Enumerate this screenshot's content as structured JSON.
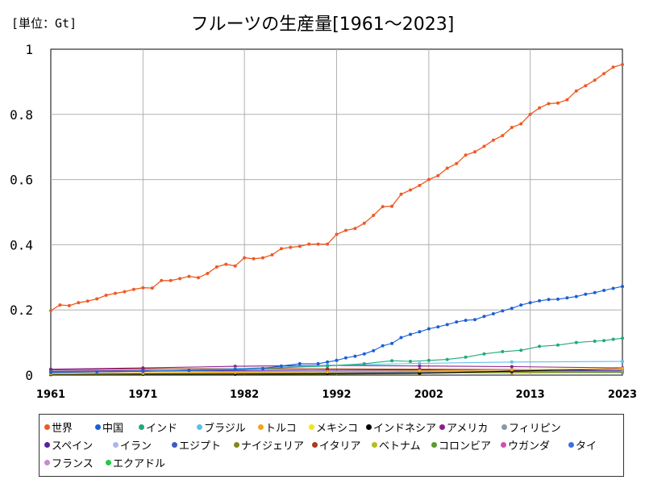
{
  "chart_data": {
    "type": "line",
    "title": "フルーツの生産量[1961～2023]",
    "unit_label": "[単位：Gt]",
    "xlabel": "",
    "ylabel": "",
    "x_ticks": [
      "1961",
      "1971",
      "1982",
      "1992",
      "2002",
      "2013",
      "2023"
    ],
    "y_ticks": [
      "0",
      "0.2",
      "0.4",
      "0.6",
      "0.8",
      "1"
    ],
    "xlim": [
      1961,
      2023
    ],
    "ylim": [
      0,
      1
    ],
    "grid": true,
    "legend_position": "bottom",
    "series": [
      {
        "name": "世界",
        "color": "#ee5a24",
        "points": [
          [
            1961,
            0.198
          ],
          [
            1962,
            0.215
          ],
          [
            1963,
            0.213
          ],
          [
            1964,
            0.222
          ],
          [
            1965,
            0.227
          ],
          [
            1966,
            0.234
          ],
          [
            1967,
            0.245
          ],
          [
            1968,
            0.251
          ],
          [
            1969,
            0.256
          ],
          [
            1970,
            0.263
          ],
          [
            1971,
            0.268
          ],
          [
            1972,
            0.267
          ],
          [
            1973,
            0.29
          ],
          [
            1974,
            0.29
          ],
          [
            1975,
            0.296
          ],
          [
            1976,
            0.303
          ],
          [
            1977,
            0.299
          ],
          [
            1978,
            0.312
          ],
          [
            1979,
            0.332
          ],
          [
            1980,
            0.34
          ],
          [
            1981,
            0.335
          ],
          [
            1982,
            0.36
          ],
          [
            1983,
            0.357
          ],
          [
            1984,
            0.36
          ],
          [
            1985,
            0.369
          ],
          [
            1986,
            0.388
          ],
          [
            1987,
            0.392
          ],
          [
            1988,
            0.395
          ],
          [
            1989,
            0.402
          ],
          [
            1990,
            0.402
          ],
          [
            1991,
            0.402
          ],
          [
            1992,
            0.432
          ],
          [
            1993,
            0.444
          ],
          [
            1994,
            0.45
          ],
          [
            1995,
            0.466
          ],
          [
            1996,
            0.49
          ],
          [
            1997,
            0.517
          ],
          [
            1998,
            0.518
          ],
          [
            1999,
            0.555
          ],
          [
            2000,
            0.568
          ],
          [
            2001,
            0.582
          ],
          [
            2002,
            0.6
          ],
          [
            2003,
            0.612
          ],
          [
            2004,
            0.635
          ],
          [
            2005,
            0.649
          ],
          [
            2006,
            0.675
          ],
          [
            2007,
            0.685
          ],
          [
            2008,
            0.702
          ],
          [
            2009,
            0.721
          ],
          [
            2010,
            0.735
          ],
          [
            2011,
            0.76
          ],
          [
            2012,
            0.771
          ],
          [
            2013,
            0.8
          ],
          [
            2014,
            0.82
          ],
          [
            2015,
            0.833
          ],
          [
            2016,
            0.835
          ],
          [
            2017,
            0.845
          ],
          [
            2018,
            0.872
          ],
          [
            2019,
            0.888
          ],
          [
            2020,
            0.905
          ],
          [
            2021,
            0.925
          ],
          [
            2022,
            0.945
          ],
          [
            2023,
            0.953
          ]
        ]
      },
      {
        "name": "中国",
        "color": "#1a5fd6",
        "points": [
          [
            1961,
            0.008
          ],
          [
            1966,
            0.01
          ],
          [
            1971,
            0.012
          ],
          [
            1976,
            0.014
          ],
          [
            1981,
            0.017
          ],
          [
            1984,
            0.02
          ],
          [
            1986,
            0.028
          ],
          [
            1988,
            0.035
          ],
          [
            1990,
            0.035
          ],
          [
            1991,
            0.04
          ],
          [
            1992,
            0.045
          ],
          [
            1993,
            0.053
          ],
          [
            1994,
            0.058
          ],
          [
            1995,
            0.065
          ],
          [
            1996,
            0.075
          ],
          [
            1997,
            0.09
          ],
          [
            1998,
            0.097
          ],
          [
            1999,
            0.115
          ],
          [
            2000,
            0.125
          ],
          [
            2001,
            0.133
          ],
          [
            2002,
            0.142
          ],
          [
            2003,
            0.148
          ],
          [
            2004,
            0.155
          ],
          [
            2005,
            0.163
          ],
          [
            2006,
            0.168
          ],
          [
            2007,
            0.17
          ],
          [
            2008,
            0.18
          ],
          [
            2009,
            0.188
          ],
          [
            2010,
            0.197
          ],
          [
            2011,
            0.205
          ],
          [
            2012,
            0.215
          ],
          [
            2013,
            0.222
          ],
          [
            2014,
            0.228
          ],
          [
            2015,
            0.232
          ],
          [
            2016,
            0.233
          ],
          [
            2017,
            0.237
          ],
          [
            2018,
            0.241
          ],
          [
            2019,
            0.248
          ],
          [
            2020,
            0.253
          ],
          [
            2021,
            0.26
          ],
          [
            2022,
            0.266
          ],
          [
            2023,
            0.272
          ]
        ]
      },
      {
        "name": "インド",
        "color": "#1faa7e",
        "points": [
          [
            1961,
            0.01
          ],
          [
            1971,
            0.012
          ],
          [
            1981,
            0.017
          ],
          [
            1991,
            0.028
          ],
          [
            1995,
            0.035
          ],
          [
            1998,
            0.044
          ],
          [
            2000,
            0.042
          ],
          [
            2002,
            0.045
          ],
          [
            2004,
            0.048
          ],
          [
            2006,
            0.055
          ],
          [
            2008,
            0.065
          ],
          [
            2010,
            0.072
          ],
          [
            2012,
            0.076
          ],
          [
            2014,
            0.088
          ],
          [
            2016,
            0.092
          ],
          [
            2018,
            0.1
          ],
          [
            2020,
            0.104
          ],
          [
            2021,
            0.106
          ],
          [
            2022,
            0.11
          ],
          [
            2023,
            0.113
          ]
        ]
      },
      {
        "name": "ブラジル",
        "color": "#5bc0e8",
        "points": [
          [
            1961,
            0.008
          ],
          [
            1971,
            0.012
          ],
          [
            1981,
            0.02
          ],
          [
            1991,
            0.03
          ],
          [
            2001,
            0.036
          ],
          [
            2011,
            0.04
          ],
          [
            2023,
            0.042
          ]
        ]
      },
      {
        "name": "トルコ",
        "color": "#f2a518",
        "points": [
          [
            1961,
            0.005
          ],
          [
            1971,
            0.007
          ],
          [
            1981,
            0.009
          ],
          [
            1991,
            0.011
          ],
          [
            2001,
            0.013
          ],
          [
            2011,
            0.016
          ],
          [
            2023,
            0.02
          ]
        ]
      },
      {
        "name": "メキシコ",
        "color": "#f5e611",
        "points": [
          [
            1961,
            0.004
          ],
          [
            1971,
            0.006
          ],
          [
            1981,
            0.008
          ],
          [
            1991,
            0.01
          ],
          [
            2001,
            0.013
          ],
          [
            2011,
            0.016
          ],
          [
            2023,
            0.02
          ]
        ]
      },
      {
        "name": "インドネシア",
        "color": "#000000",
        "points": [
          [
            1961,
            0.002
          ],
          [
            1971,
            0.003
          ],
          [
            1981,
            0.003
          ],
          [
            1991,
            0.004
          ],
          [
            2001,
            0.006
          ],
          [
            2011,
            0.012
          ],
          [
            2023,
            0.02
          ]
        ]
      },
      {
        "name": "アメリカ",
        "color": "#8a1d8a",
        "points": [
          [
            1961,
            0.018
          ],
          [
            1971,
            0.022
          ],
          [
            1981,
            0.027
          ],
          [
            1991,
            0.03
          ],
          [
            2001,
            0.028
          ],
          [
            2011,
            0.026
          ],
          [
            2023,
            0.022
          ]
        ]
      },
      {
        "name": "フィリピン",
        "color": "#8a98a8",
        "points": [
          [
            1961,
            0.003
          ],
          [
            1971,
            0.004
          ],
          [
            1981,
            0.006
          ],
          [
            1991,
            0.007
          ],
          [
            2001,
            0.009
          ],
          [
            2011,
            0.012
          ],
          [
            2023,
            0.012
          ]
        ]
      },
      {
        "name": "スペイン",
        "color": "#5a1fa0",
        "points": [
          [
            1961,
            0.012
          ],
          [
            1971,
            0.014
          ],
          [
            1981,
            0.014
          ],
          [
            1991,
            0.015
          ],
          [
            2001,
            0.016
          ],
          [
            2011,
            0.015
          ],
          [
            2023,
            0.014
          ]
        ]
      },
      {
        "name": "イラン",
        "color": "#aeb4ee",
        "points": [
          [
            1961,
            0.002
          ],
          [
            1971,
            0.004
          ],
          [
            1981,
            0.006
          ],
          [
            1991,
            0.01
          ],
          [
            2001,
            0.013
          ],
          [
            2011,
            0.015
          ],
          [
            2023,
            0.016
          ]
        ]
      },
      {
        "name": "エジプト",
        "color": "#3b5cc0",
        "points": [
          [
            1961,
            0.002
          ],
          [
            1971,
            0.003
          ],
          [
            1981,
            0.004
          ],
          [
            1991,
            0.006
          ],
          [
            2001,
            0.008
          ],
          [
            2011,
            0.011
          ],
          [
            2023,
            0.014
          ]
        ]
      },
      {
        "name": "ナイジェリア",
        "color": "#86861a",
        "points": [
          [
            1961,
            0.004
          ],
          [
            1971,
            0.005
          ],
          [
            1981,
            0.006
          ],
          [
            1991,
            0.008
          ],
          [
            2001,
            0.009
          ],
          [
            2011,
            0.01
          ],
          [
            2023,
            0.011
          ]
        ]
      },
      {
        "name": "イタリア",
        "color": "#a83c1a",
        "points": [
          [
            1961,
            0.016
          ],
          [
            1971,
            0.019
          ],
          [
            1981,
            0.02
          ],
          [
            1991,
            0.019
          ],
          [
            2001,
            0.018
          ],
          [
            2011,
            0.017
          ],
          [
            2023,
            0.015
          ]
        ]
      },
      {
        "name": "ベトナム",
        "color": "#b4be1e",
        "points": [
          [
            1961,
            0.001
          ],
          [
            1971,
            0.002
          ],
          [
            1981,
            0.002
          ],
          [
            1991,
            0.003
          ],
          [
            2001,
            0.005
          ],
          [
            2011,
            0.008
          ],
          [
            2023,
            0.014
          ]
        ]
      },
      {
        "name": "コロンビア",
        "color": "#5a9a2a",
        "points": [
          [
            1961,
            0.002
          ],
          [
            1971,
            0.003
          ],
          [
            1981,
            0.004
          ],
          [
            1991,
            0.005
          ],
          [
            2001,
            0.006
          ],
          [
            2011,
            0.007
          ],
          [
            2023,
            0.009
          ]
        ]
      },
      {
        "name": "ウガンダ",
        "color": "#d050b0",
        "points": [
          [
            1961,
            0.004
          ],
          [
            1971,
            0.005
          ],
          [
            1981,
            0.006
          ],
          [
            1991,
            0.008
          ],
          [
            2001,
            0.01
          ],
          [
            2011,
            0.011
          ],
          [
            2023,
            0.01
          ]
        ]
      },
      {
        "name": "タイ",
        "color": "#3a70e0",
        "points": [
          [
            1961,
            0.002
          ],
          [
            1971,
            0.003
          ],
          [
            1981,
            0.005
          ],
          [
            1991,
            0.007
          ],
          [
            2001,
            0.008
          ],
          [
            2011,
            0.009
          ],
          [
            2023,
            0.011
          ]
        ]
      },
      {
        "name": "フランス",
        "color": "#c88ad0",
        "points": [
          [
            1961,
            0.01
          ],
          [
            1971,
            0.012
          ],
          [
            1981,
            0.011
          ],
          [
            1991,
            0.011
          ],
          [
            2001,
            0.01
          ],
          [
            2011,
            0.009
          ],
          [
            2023,
            0.008
          ]
        ]
      },
      {
        "name": "エクアドル",
        "color": "#22cc44",
        "points": [
          [
            1961,
            0.003
          ],
          [
            1971,
            0.004
          ],
          [
            1981,
            0.004
          ],
          [
            1991,
            0.006
          ],
          [
            2001,
            0.008
          ],
          [
            2011,
            0.009
          ],
          [
            2023,
            0.008
          ]
        ]
      }
    ]
  }
}
